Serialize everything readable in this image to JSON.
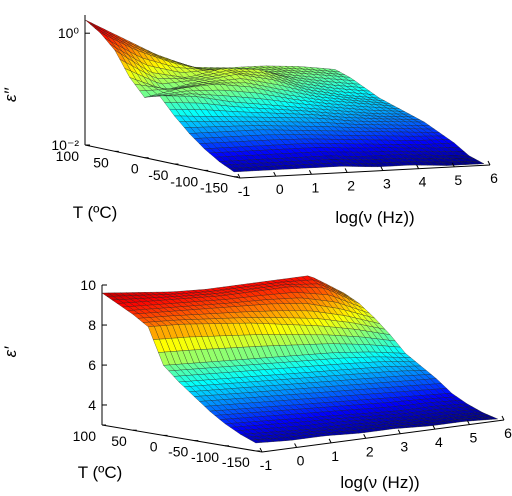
{
  "chart_data": [
    {
      "type": "surface",
      "zlabel": "ε′′",
      "xlabel": "log(ν (Hz))",
      "ylabel": "T (ºC)",
      "z_scale": "log",
      "x_ticks": [
        "-1",
        "0",
        "1",
        "2",
        "3",
        "4",
        "5",
        "6"
      ],
      "y_ticks": [
        "100",
        "50",
        "0",
        "-50",
        "-100",
        "-150"
      ],
      "z_ticks": [
        "10⁰",
        "10⁻²"
      ],
      "x_range": [
        -1,
        6
      ],
      "y_range": [
        -160,
        100
      ],
      "z_range": [
        0.01,
        5
      ],
      "colormap": "jet",
      "grid_x": [
        -1,
        0,
        1,
        2,
        3,
        4,
        5,
        6
      ],
      "grid_T": [
        100,
        75,
        50,
        25,
        0,
        -25,
        -50,
        -75,
        -100,
        -125,
        -150
      ],
      "z_log10": [
        [
          0.6,
          0.2,
          -0.2,
          -0.5,
          -0.55,
          -0.55,
          -0.6,
          -0.7
        ],
        [
          0.4,
          0.0,
          -0.3,
          -0.5,
          -0.55,
          -0.6,
          -0.7,
          -0.8
        ],
        [
          0.1,
          -0.4,
          -0.55,
          -0.4,
          -0.45,
          -0.7,
          -0.85,
          -0.95
        ],
        [
          -0.4,
          -0.7,
          -0.55,
          -0.45,
          -0.6,
          -0.85,
          -1.0,
          -1.1
        ],
        [
          -0.75,
          -0.6,
          -0.55,
          -0.65,
          -0.85,
          -1.0,
          -1.1,
          -1.2
        ],
        [
          -0.65,
          -0.7,
          -0.85,
          -0.95,
          -1.05,
          -1.15,
          -1.25,
          -1.3
        ],
        [
          -1.0,
          -1.05,
          -1.1,
          -1.15,
          -1.2,
          -1.3,
          -1.35,
          -1.4
        ],
        [
          -1.3,
          -1.3,
          -1.3,
          -1.35,
          -1.4,
          -1.45,
          -1.5,
          -1.55
        ],
        [
          -1.55,
          -1.55,
          -1.55,
          -1.55,
          -1.6,
          -1.65,
          -1.7,
          -1.7
        ],
        [
          -1.75,
          -1.75,
          -1.75,
          -1.75,
          -1.8,
          -1.8,
          -1.85,
          -1.9
        ],
        [
          -1.9,
          -1.9,
          -1.9,
          -1.9,
          -1.95,
          -1.95,
          -2.0,
          -2.0
        ]
      ]
    },
    {
      "type": "surface",
      "zlabel": "ε′",
      "xlabel": "log(ν (Hz))",
      "ylabel": "T (ºC)",
      "x_ticks": [
        "-1",
        "0",
        "1",
        "2",
        "3",
        "4",
        "5",
        "6"
      ],
      "y_ticks": [
        "100",
        "50",
        "0",
        "-50",
        "-100",
        "-150"
      ],
      "z_ticks": [
        "10",
        "8",
        "6",
        "4"
      ],
      "x_range": [
        -1,
        6
      ],
      "y_range": [
        -160,
        100
      ],
      "z_range": [
        3,
        10
      ],
      "colormap": "jet",
      "grid_x": [
        -1,
        0,
        1,
        2,
        3,
        4,
        5,
        6
      ],
      "grid_T": [
        100,
        75,
        50,
        25,
        0,
        -25,
        -50,
        -75,
        -100,
        -125,
        -150
      ],
      "z": [
        [
          9.6,
          9.4,
          9.2,
          9.1,
          9.1,
          9.1,
          9.1,
          8.0
        ],
        [
          9.2,
          9.1,
          9.0,
          8.9,
          8.9,
          8.9,
          8.6,
          7.6
        ],
        [
          8.8,
          8.7,
          8.6,
          8.5,
          8.4,
          8.2,
          7.7,
          7.0
        ],
        [
          8.3,
          8.2,
          8.0,
          7.8,
          7.5,
          7.2,
          6.8,
          6.3
        ],
        [
          6.5,
          6.4,
          6.3,
          6.2,
          6.1,
          6.0,
          5.8,
          5.5
        ],
        [
          5.8,
          5.7,
          5.6,
          5.5,
          5.4,
          5.3,
          5.2,
          5.0
        ],
        [
          5.2,
          5.1,
          5.0,
          4.9,
          4.8,
          4.7,
          4.6,
          4.5
        ],
        [
          4.6,
          4.5,
          4.4,
          4.3,
          4.2,
          4.1,
          4.0,
          3.9
        ],
        [
          4.1,
          4.0,
          3.9,
          3.8,
          3.7,
          3.6,
          3.6,
          3.5
        ],
        [
          3.7,
          3.6,
          3.5,
          3.5,
          3.4,
          3.3,
          3.3,
          3.2
        ],
        [
          3.4,
          3.3,
          3.3,
          3.2,
          3.2,
          3.1,
          3.1,
          3.0
        ]
      ]
    }
  ]
}
